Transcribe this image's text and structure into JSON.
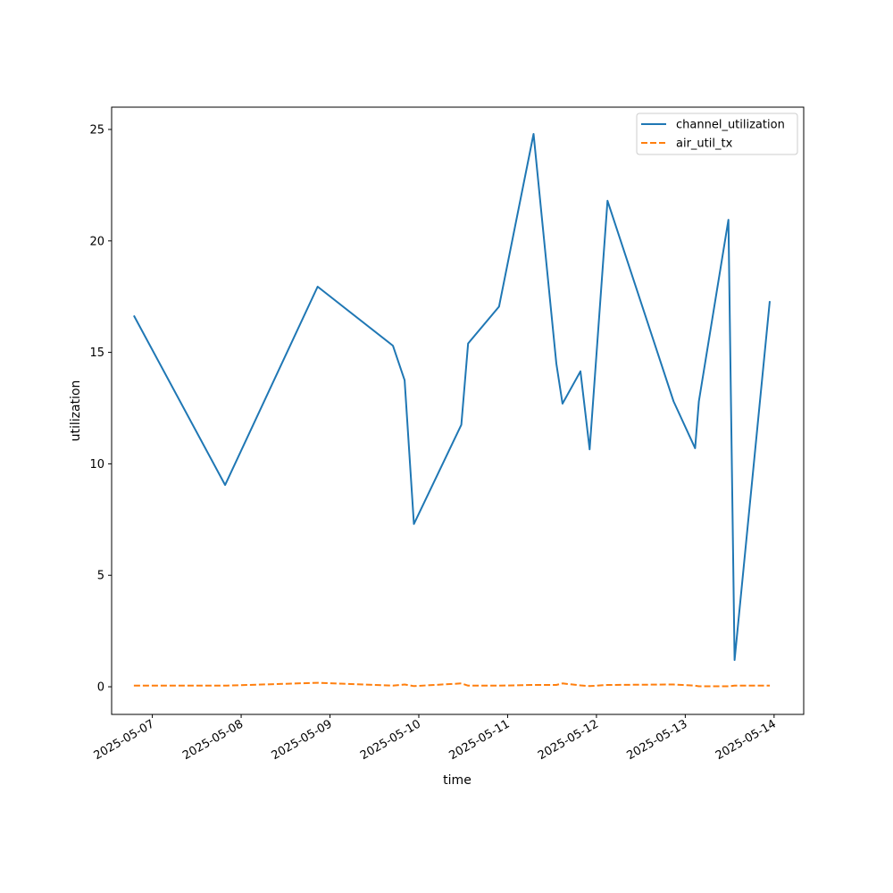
{
  "chart_data": {
    "type": "line",
    "title": "",
    "xlabel": "time",
    "ylabel": "utilization",
    "xlim": [
      "2025-05-06T13:00",
      "2025-05-14T08:00"
    ],
    "ylim": [
      -1.24,
      26.0
    ],
    "x_ticks": [
      "2025-05-07",
      "2025-05-08",
      "2025-05-09",
      "2025-05-10",
      "2025-05-11",
      "2025-05-12",
      "2025-05-13",
      "2025-05-14"
    ],
    "y_ticks": [
      0,
      5,
      10,
      15,
      20,
      25
    ],
    "y_tick_labels": [
      "0",
      "5",
      "10",
      "15",
      "20",
      "25"
    ],
    "grid": false,
    "legend_position": "top-right",
    "series": [
      {
        "name": "channel_utilization",
        "color": "#1f77b4",
        "style": "solid",
        "points": [
          [
            "2025-05-06T19:00",
            16.65
          ],
          [
            "2025-05-07T19:40",
            9.05
          ],
          [
            "2025-05-08T20:40",
            17.95
          ],
          [
            "2025-05-09T17:00",
            15.3
          ],
          [
            "2025-05-09T20:10",
            13.75
          ],
          [
            "2025-05-09T22:40",
            7.3
          ],
          [
            "2025-05-10T11:30",
            11.75
          ],
          [
            "2025-05-10T13:20",
            15.4
          ],
          [
            "2025-05-10T21:40",
            17.05
          ],
          [
            "2025-05-11T07:00",
            24.8
          ],
          [
            "2025-05-11T13:10",
            14.5
          ],
          [
            "2025-05-11T14:50",
            12.7
          ],
          [
            "2025-05-11T19:40",
            14.15
          ],
          [
            "2025-05-11T22:10",
            10.65
          ],
          [
            "2025-05-12T03:00",
            21.8
          ],
          [
            "2025-05-12T20:50",
            12.8
          ],
          [
            "2025-05-13T02:40",
            10.7
          ],
          [
            "2025-05-13T03:40",
            12.8
          ],
          [
            "2025-05-13T11:40",
            20.95
          ],
          [
            "2025-05-13T13:20",
            1.2
          ],
          [
            "2025-05-13T22:50",
            17.3
          ]
        ]
      },
      {
        "name": "air_util_tx",
        "color": "#ff7f0e",
        "style": "dashed",
        "points": [
          [
            "2025-05-06T19:00",
            0.05
          ],
          [
            "2025-05-07T19:40",
            0.05
          ],
          [
            "2025-05-08T20:40",
            0.18
          ],
          [
            "2025-05-09T17:00",
            0.05
          ],
          [
            "2025-05-09T20:10",
            0.1
          ],
          [
            "2025-05-09T22:40",
            0.03
          ],
          [
            "2025-05-10T11:30",
            0.15
          ],
          [
            "2025-05-10T13:20",
            0.05
          ],
          [
            "2025-05-10T21:40",
            0.05
          ],
          [
            "2025-05-11T07:00",
            0.08
          ],
          [
            "2025-05-11T13:10",
            0.08
          ],
          [
            "2025-05-11T14:50",
            0.15
          ],
          [
            "2025-05-11T19:40",
            0.06
          ],
          [
            "2025-05-11T22:10",
            0.03
          ],
          [
            "2025-05-12T03:00",
            0.08
          ],
          [
            "2025-05-12T20:50",
            0.1
          ],
          [
            "2025-05-13T02:40",
            0.05
          ],
          [
            "2025-05-13T03:40",
            0.02
          ],
          [
            "2025-05-13T11:40",
            0.02
          ],
          [
            "2025-05-13T13:20",
            0.05
          ],
          [
            "2025-05-13T22:50",
            0.05
          ]
        ]
      }
    ]
  }
}
